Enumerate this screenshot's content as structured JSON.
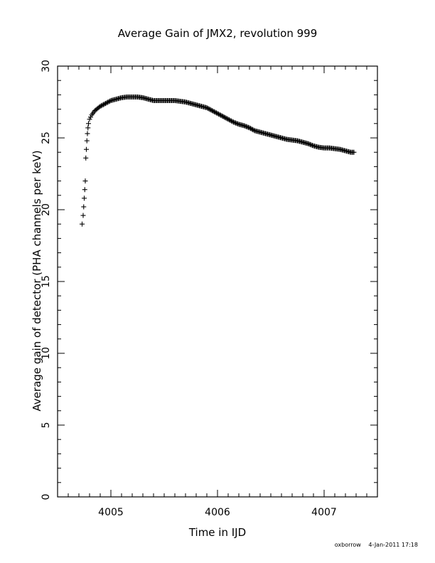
{
  "chart_data": {
    "type": "scatter",
    "title": "Average Gain of JMX2, revolution 999",
    "xlabel": "Time in IJD",
    "ylabel": "Average gain of detector (PHA channels per keV)",
    "xlim": [
      4004.5,
      4007.5
    ],
    "ylim": [
      0,
      30
    ],
    "xticks": [
      4005,
      4006,
      4007
    ],
    "yticks": [
      0,
      5,
      10,
      15,
      20,
      25,
      30
    ],
    "marker": "plus",
    "grid": false,
    "series": [
      {
        "x": [
          4004.73,
          4004.74,
          4004.745,
          4004.75,
          4004.755,
          4004.76,
          4004.765,
          4004.77,
          4004.775,
          4004.78,
          4004.785,
          4004.79,
          4004.8,
          4004.82,
          4004.85,
          4004.9,
          4004.95,
          4005.0,
          4005.05,
          4005.1,
          4005.15,
          4005.2,
          4005.25,
          4005.3,
          4005.35,
          4005.4,
          4005.45,
          4005.5,
          4005.55,
          4005.6,
          4005.65,
          4005.7,
          4005.75,
          4005.8,
          4005.85,
          4005.9,
          4005.95,
          4006.0,
          4006.05,
          4006.1,
          4006.15,
          4006.2,
          4006.25,
          4006.3,
          4006.35,
          4006.4,
          4006.45,
          4006.5,
          4006.55,
          4006.6,
          4006.65,
          4006.7,
          4006.75,
          4006.8,
          4006.85,
          4006.9,
          4006.95,
          4007.0,
          4007.05,
          4007.1,
          4007.15,
          4007.2,
          4007.25,
          4007.28
        ],
        "y": [
          19.0,
          19.6,
          20.2,
          20.8,
          21.4,
          22.0,
          23.6,
          24.2,
          24.8,
          25.3,
          25.7,
          26.0,
          26.3,
          26.6,
          26.9,
          27.2,
          27.4,
          27.6,
          27.7,
          27.8,
          27.85,
          27.85,
          27.85,
          27.8,
          27.7,
          27.6,
          27.6,
          27.6,
          27.6,
          27.6,
          27.55,
          27.5,
          27.4,
          27.3,
          27.2,
          27.1,
          26.9,
          26.7,
          26.5,
          26.3,
          26.1,
          25.95,
          25.85,
          25.7,
          25.5,
          25.4,
          25.3,
          25.2,
          25.1,
          25.0,
          24.9,
          24.85,
          24.8,
          24.7,
          24.6,
          24.45,
          24.35,
          24.3,
          24.3,
          24.25,
          24.2,
          24.1,
          24.0,
          24.0
        ]
      }
    ]
  },
  "footer": {
    "user": "oxborrow",
    "timestamp": "4-Jan-2011 17:18"
  }
}
